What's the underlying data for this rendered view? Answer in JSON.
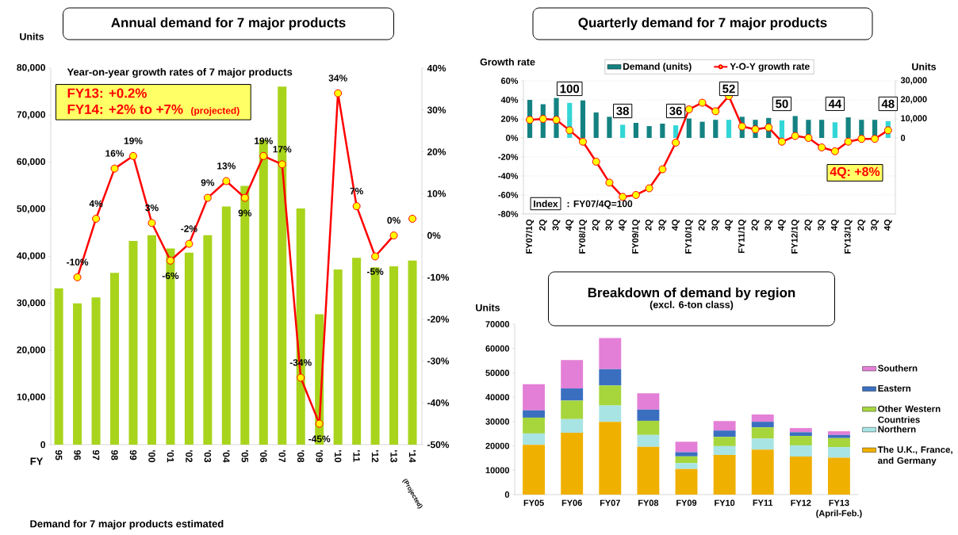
{
  "chart_data": [
    {
      "type": "bar",
      "title": "Annual demand for 7 major products",
      "xlabel": "FY",
      "ylabel": "Units",
      "marker": "circle",
      "categories": [
        "95",
        "96",
        "97",
        "98",
        "99",
        "'00",
        "'01",
        "'02",
        "'03",
        "'04",
        "'05",
        "'06",
        "'07",
        "'08",
        "'09",
        "'10",
        "'11",
        "'12",
        "'13",
        "'14"
      ],
      "series": [
        {
          "type": "bar",
          "color": "#a8d41c",
          "values": [
            33200,
            30000,
            31300,
            36500,
            43300,
            44500,
            41700,
            40800,
            44500,
            50600,
            55000,
            64800,
            76100,
            50200,
            27700,
            37200,
            39700,
            37700,
            37900,
            39100
          ]
        },
        {
          "type": "line",
          "axis": "y2",
          "color": "#ff0000",
          "values": [
            null,
            -10,
            4,
            16,
            19,
            3,
            -6,
            -2,
            9,
            13,
            9,
            19,
            17,
            -34,
            -45,
            34,
            7,
            -5,
            0,
            null
          ],
          "value_labels": [
            null,
            "-10%",
            "4%",
            "16%",
            "19%",
            "3%",
            "-6%",
            "-2%",
            "9%",
            "13%",
            "9%",
            "19%",
            "17%",
            "-34%",
            "-45%",
            "34%",
            "7%",
            "-5%",
            "0%",
            null
          ]
        },
        {
          "type": "scatter",
          "axis": "y2",
          "color": "#ff0000",
          "values": [
            null,
            null,
            null,
            null,
            null,
            null,
            null,
            null,
            null,
            null,
            null,
            null,
            null,
            null,
            null,
            null,
            null,
            null,
            null,
            4
          ]
        }
      ],
      "ylim": [
        0,
        80000
      ],
      "yticks": [
        {
          "value": 0,
          "label": "0"
        },
        {
          "value": 10000,
          "label": "10,000"
        },
        {
          "value": 20000,
          "label": "20,000"
        },
        {
          "value": 30000,
          "label": "30,000"
        },
        {
          "value": 40000,
          "label": "40,000"
        },
        {
          "value": 50000,
          "label": "50,000"
        },
        {
          "value": 60000,
          "label": "60,000"
        },
        {
          "value": 70000,
          "label": "70,000"
        },
        {
          "value": 80000,
          "label": "80,000"
        }
      ],
      "y2lim": [
        -50,
        40
      ],
      "y2ticks": [
        {
          "value": -50,
          "label": "-50%"
        },
        {
          "value": -40,
          "label": "-40%"
        },
        {
          "value": -30,
          "label": "-30%"
        },
        {
          "value": -20,
          "label": "-20%"
        },
        {
          "value": -10,
          "label": "-10%"
        },
        {
          "value": 0,
          "label": "0%"
        },
        {
          "value": 10,
          "label": "10%"
        },
        {
          "value": 20,
          "label": "20%"
        },
        {
          "value": 30,
          "label": "30%"
        },
        {
          "value": 40,
          "label": "40%"
        }
      ],
      "annotations": [
        "Year-on-year growth rates  of 7 major products",
        "FY13: +0.2%",
        "FY14: +2% to +7%",
        "(projected)",
        "(Projected)",
        "Demand for 7 major products estimated"
      ]
    },
    {
      "type": "bar",
      "title": "Quarterly demand for 7 major products",
      "ylabel": "Growth rate",
      "y2label": "Units",
      "legend": "top",
      "grid": "y",
      "marker": "circle",
      "categories": [
        "FY07/1Q",
        "2Q",
        "3Q",
        "4Q",
        "FY08/1Q",
        "2Q",
        "3Q",
        "4Q",
        "FY09/1Q",
        "2Q",
        "3Q",
        "4Q",
        "FY10/1Q",
        "2Q",
        "3Q",
        "4Q",
        "FY11/1Q",
        "2Q",
        "3Q",
        "4Q",
        "FY12/1Q",
        "2Q",
        "3Q",
        "4Q",
        "FY13/1Q",
        "2Q",
        "3Q",
        "4Q"
      ],
      "series": [
        {
          "type": "bar",
          "name": "Demand (units)",
          "axis": "y2",
          "color": "#148282",
          "colors": [
            "#148282",
            "#148282",
            "#148282",
            "#33d6d6",
            "#148282",
            "#148282",
            "#148282",
            "#33d6d6",
            "#148282",
            "#148282",
            "#148282",
            "#33d6d6",
            "#148282",
            "#148282",
            "#148282",
            "#33d6d6",
            "#148282",
            "#148282",
            "#148282",
            "#33d6d6",
            "#148282",
            "#148282",
            "#148282",
            "#33d6d6",
            "#148282",
            "#148282",
            "#148282",
            "#33d6d6"
          ],
          "values": [
            20000,
            17700,
            21000,
            18400,
            19700,
            13400,
            11100,
            6900,
            7900,
            6200,
            7500,
            6600,
            10200,
            8500,
            9500,
            9500,
            11100,
            9500,
            10500,
            9200,
            11500,
            9500,
            9500,
            8200,
            10800,
            9500,
            9500,
            8800
          ]
        },
        {
          "type": "line",
          "name": "Y-O-Y growth rate",
          "color": "#ff0000",
          "values": [
            19,
            20,
            19,
            8,
            -4,
            -25,
            -47,
            -62,
            -60,
            -53,
            -33,
            -5,
            30,
            37,
            28,
            44,
            12,
            9,
            11,
            -4,
            2,
            0,
            -10,
            -14,
            -4,
            -1,
            -1,
            8
          ]
        }
      ],
      "ylim": [
        -80,
        60
      ],
      "yticks": [
        {
          "value": -80,
          "label": "-80%"
        },
        {
          "value": -60,
          "label": "-60%"
        },
        {
          "value": -40,
          "label": "-40%"
        },
        {
          "value": -20,
          "label": "-20%"
        },
        {
          "value": 0,
          "label": "0%"
        },
        {
          "value": 20,
          "label": "20%"
        },
        {
          "value": 40,
          "label": "40%"
        },
        {
          "value": 60,
          "label": "60%"
        }
      ],
      "y2lim": [
        -40000,
        30000
      ],
      "y2ticks": [
        {
          "value": 0,
          "label": "0"
        },
        {
          "value": 10000,
          "label": "10,000"
        },
        {
          "value": 20000,
          "label": "20,000"
        },
        {
          "value": 30000,
          "label": "30,000"
        }
      ],
      "annotations": [
        "100",
        "38",
        "36",
        "52",
        "50",
        "44",
        "48",
        "Index",
        ": FY07/4Q=100",
        "4Q: +8%"
      ]
    },
    {
      "type": "bar",
      "stacked": true,
      "title": "Breakdown of demand by region",
      "subtitle": "(excl. 6-ton class)",
      "ylabel": "Units",
      "legend": "right",
      "categories": [
        "FY05",
        "FY06",
        "FY07",
        "FY08",
        "FY09",
        "FY10",
        "FY11",
        "FY12",
        "FY13 (April-Feb.)"
      ],
      "series": [
        {
          "name": "The U.K., France, and Germany",
          "color": "#f0b000",
          "values": [
            20400,
            25400,
            29900,
            19600,
            10500,
            16300,
            18500,
            15600,
            15100
          ]
        },
        {
          "name": "Northern",
          "color": "#a8e4e4",
          "values": [
            4700,
            5600,
            6700,
            4900,
            2400,
            3600,
            4500,
            4600,
            4400
          ]
        },
        {
          "name": "Other Western Countries",
          "color": "#a6d63c",
          "values": [
            6500,
            7600,
            8200,
            5800,
            2800,
            3800,
            4600,
            3900,
            3700
          ]
        },
        {
          "name": "Eastern",
          "color": "#3a6fc0",
          "values": [
            3000,
            5000,
            6700,
            4600,
            1700,
            2600,
            2300,
            1500,
            1300
          ]
        },
        {
          "name": "Southern",
          "color": "#e37fd6",
          "values": [
            10700,
            11700,
            12800,
            6700,
            4300,
            3900,
            3000,
            1700,
            1500
          ]
        }
      ],
      "ylim": [
        0,
        70000
      ],
      "yticks": [
        0,
        10000,
        20000,
        30000,
        40000,
        50000,
        60000,
        70000
      ]
    }
  ]
}
